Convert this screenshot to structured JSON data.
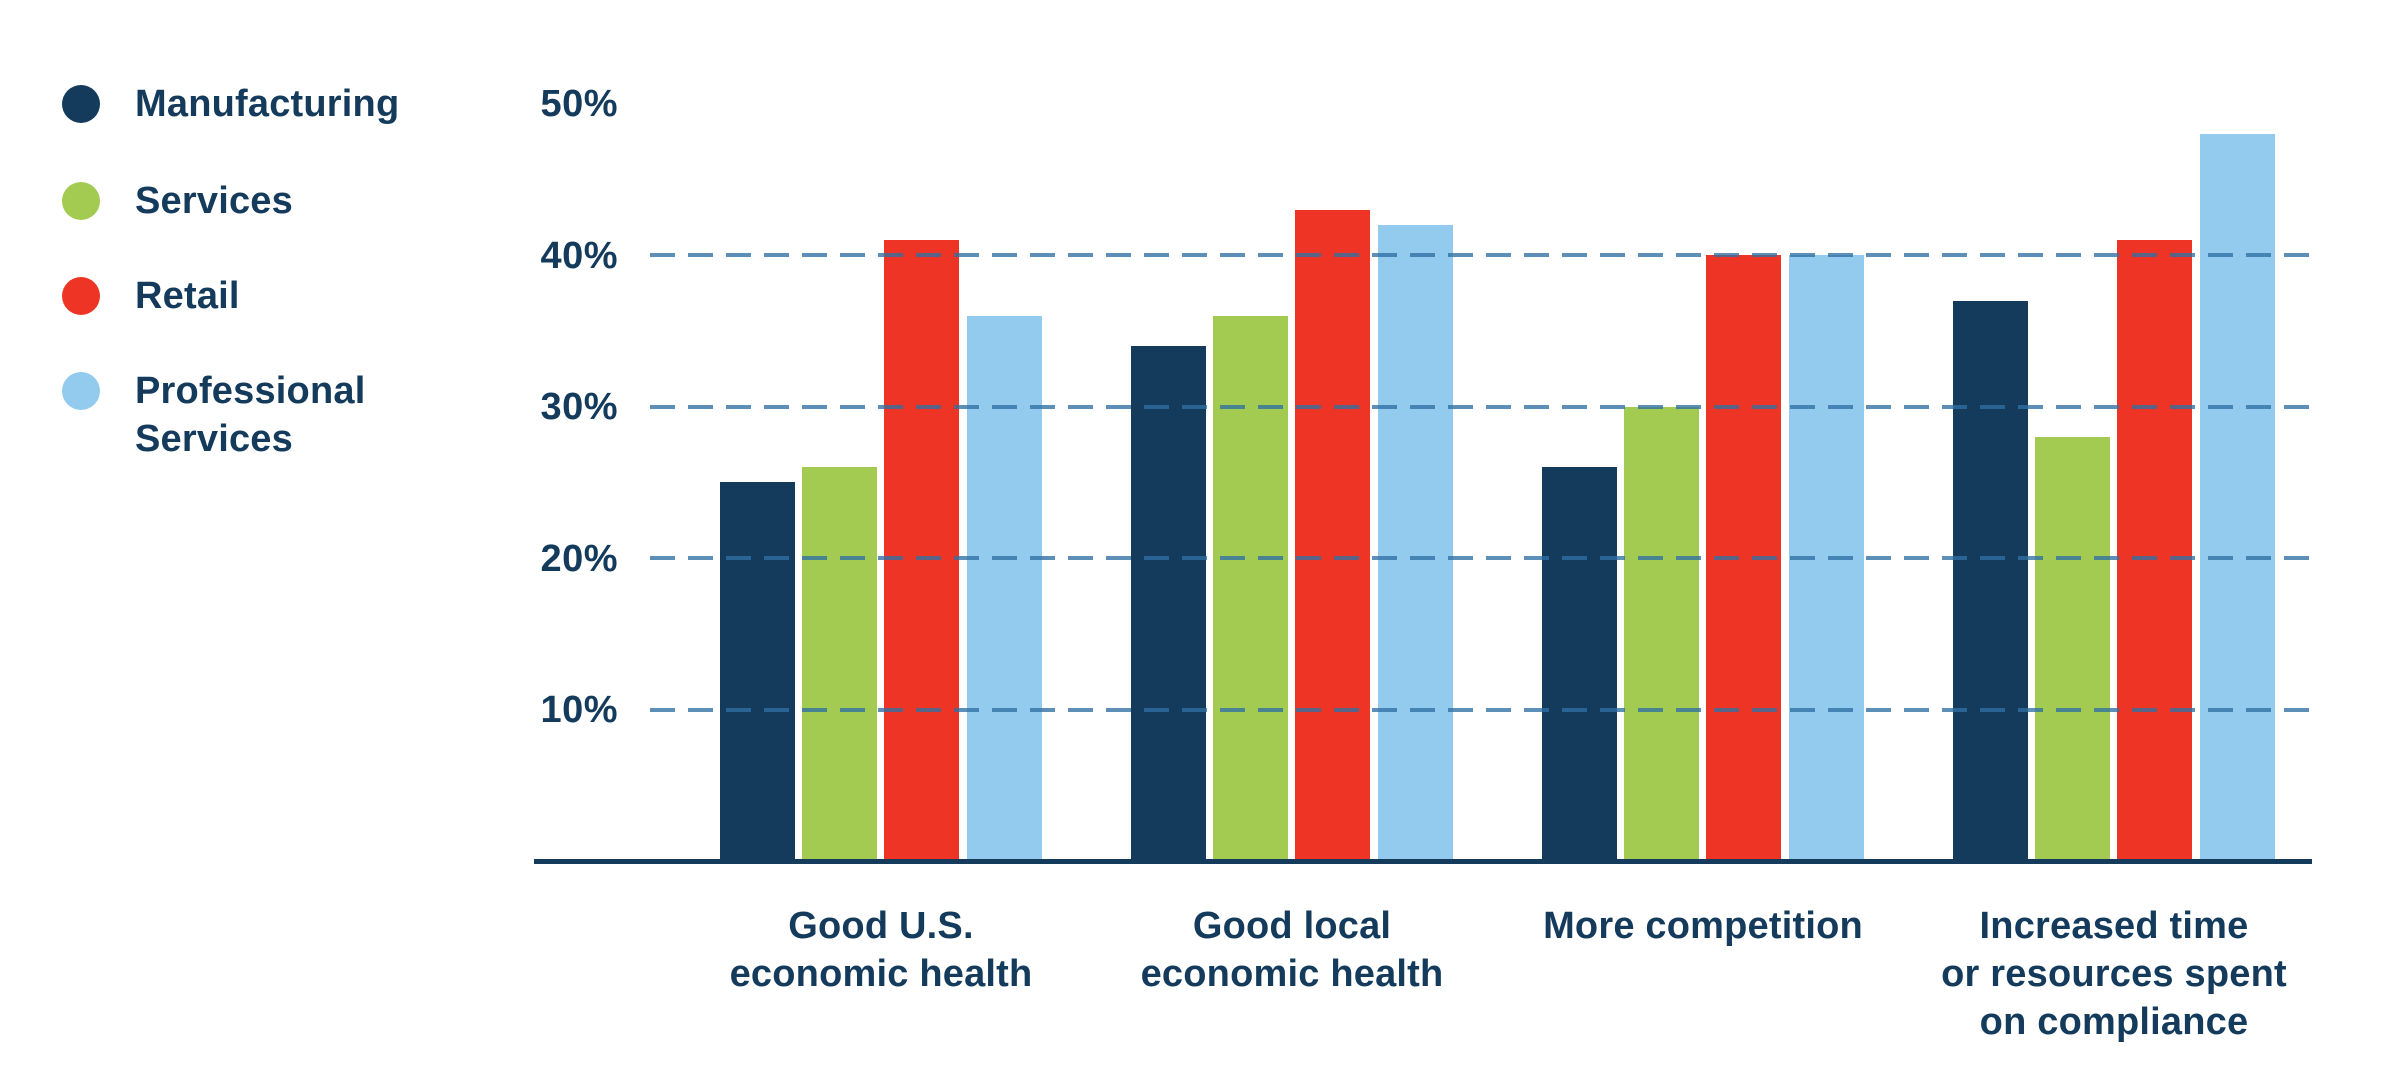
{
  "chart_data": {
    "type": "bar",
    "title": "",
    "xlabel": "",
    "ylabel": "",
    "categories": [
      "Good U.S. economic health",
      "Good local economic health",
      "More competition",
      "Increased time or resources spent on compliance"
    ],
    "category_lines": [
      [
        "Good U.S.",
        "economic health"
      ],
      [
        "Good local",
        "economic health"
      ],
      [
        "More competition"
      ],
      [
        "Increased time",
        "or resources spent",
        "on compliance"
      ]
    ],
    "series": [
      {
        "name": "Manufacturing",
        "color": "#143a5c",
        "values": [
          25,
          34,
          26,
          37
        ]
      },
      {
        "name": "Services",
        "color": "#a3cb52",
        "values": [
          26,
          36,
          30,
          28
        ]
      },
      {
        "name": "Retail",
        "color": "#ee3424",
        "values": [
          41,
          43,
          40,
          41
        ]
      },
      {
        "name": "Professional Services",
        "color": "#93cbee",
        "values": [
          36,
          42,
          40,
          48
        ]
      }
    ],
    "y_axis": {
      "unit": "%",
      "min": 0,
      "max": 50,
      "tick_labels": [
        "50%",
        "40%",
        "30%",
        "20%",
        "10%"
      ],
      "tick_values": [
        50,
        40,
        30,
        20,
        10
      ],
      "gridlines_at": [
        40,
        30,
        20,
        10
      ],
      "grid_style": "dashed"
    },
    "legend_position": "top-left",
    "grid_on": true,
    "text_color": "#143a5c",
    "grid_color": "#2f6fa3",
    "axis_color": "#143a5c"
  }
}
